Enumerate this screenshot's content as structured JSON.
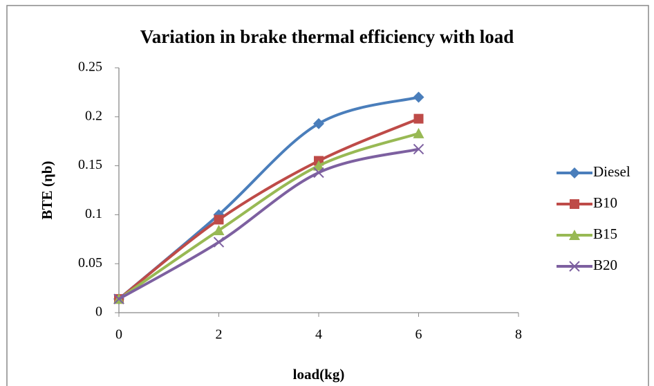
{
  "chart_data": {
    "type": "line",
    "title": "Variation in brake thermal efficiency with load",
    "x_label": "load(kg)",
    "y_label": "BTE (ηb)",
    "x": [
      0,
      2,
      4,
      6
    ],
    "xlim": [
      0,
      8
    ],
    "xticks": [
      0,
      2,
      4,
      6,
      8
    ],
    "ylim": [
      0,
      0.25
    ],
    "yticks": [
      0,
      0.05,
      0.1,
      0.15,
      0.2,
      0.25
    ],
    "smooth": true,
    "series": [
      {
        "name": "Diesel",
        "color": "#4a7ebb",
        "marker": "diamond",
        "values": [
          0.014,
          0.1,
          0.193,
          0.22
        ]
      },
      {
        "name": "B10",
        "color": "#be4b48",
        "marker": "square",
        "values": [
          0.014,
          0.095,
          0.155,
          0.198
        ]
      },
      {
        "name": "B15",
        "color": "#98b954",
        "marker": "triangle",
        "values": [
          0.014,
          0.084,
          0.15,
          0.183
        ]
      },
      {
        "name": "B20",
        "color": "#7d60a0",
        "marker": "x",
        "values": [
          0.014,
          0.072,
          0.143,
          0.167
        ]
      }
    ]
  }
}
